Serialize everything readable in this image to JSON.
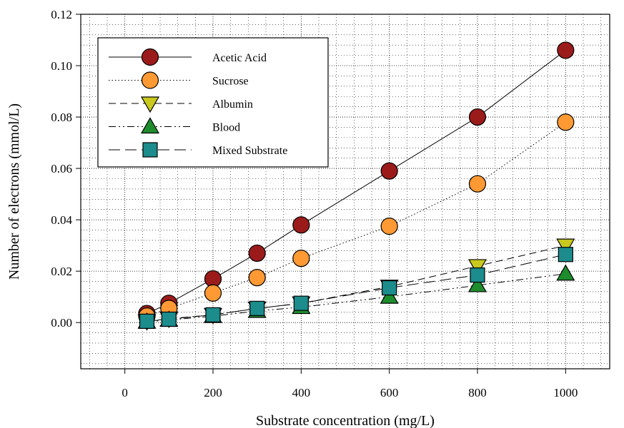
{
  "chart_data": {
    "type": "scatter",
    "title": "",
    "xlabel": "Substrate concentration (mg/L)",
    "ylabel": "Number of electrons (mmol/L)",
    "xlim": [
      -100,
      1100
    ],
    "ylim": [
      -0.018,
      0.12
    ],
    "x_ticks": [
      0,
      200,
      400,
      600,
      800,
      1000
    ],
    "x_tick_labels": [
      "0",
      "200",
      "400",
      "600",
      "800",
      "1000"
    ],
    "y_ticks": [
      0.0,
      0.02,
      0.04,
      0.06,
      0.08,
      0.1,
      0.12
    ],
    "y_tick_labels": [
      "0.00",
      "0.02",
      "0.04",
      "0.06",
      "0.08",
      "0.10",
      "0.12"
    ],
    "grid": true,
    "legend_position": "top-left",
    "series": [
      {
        "name": "Acetic Acid",
        "marker": "circle",
        "color": "#9B1B1B",
        "line": "solid",
        "x": [
          50,
          100,
          200,
          300,
          400,
          600,
          800,
          1000
        ],
        "y": [
          0.0035,
          0.0075,
          0.017,
          0.027,
          0.038,
          0.059,
          0.08,
          0.106
        ]
      },
      {
        "name": "Sucrose",
        "marker": "circle",
        "color": "#FF9933",
        "line": "dotted",
        "x": [
          50,
          100,
          200,
          300,
          400,
          600,
          800,
          1000
        ],
        "y": [
          0.0025,
          0.0055,
          0.0115,
          0.0175,
          0.025,
          0.0375,
          0.054,
          0.078
        ]
      },
      {
        "name": "Albumin",
        "marker": "triangle-down",
        "color": "#C8C81E",
        "line": "dashed",
        "x": [
          50,
          100,
          200,
          300,
          400,
          600,
          800,
          1000
        ],
        "y": [
          0.0005,
          0.0015,
          0.003,
          0.0055,
          0.0075,
          0.014,
          0.022,
          0.03
        ]
      },
      {
        "name": "Blood",
        "marker": "triangle-up",
        "color": "#1E8C2D",
        "line": "dash-dot-dot",
        "x": [
          50,
          100,
          200,
          300,
          400,
          600,
          800,
          1000
        ],
        "y": [
          0.0003,
          0.001,
          0.0025,
          0.0045,
          0.006,
          0.01,
          0.0145,
          0.019
        ]
      },
      {
        "name": "Mixed Substrate",
        "marker": "square",
        "color": "#1C8C8C",
        "line": "long-dash",
        "x": [
          50,
          100,
          200,
          300,
          400,
          600,
          800,
          1000
        ],
        "y": [
          0.0005,
          0.0013,
          0.003,
          0.0055,
          0.0075,
          0.0135,
          0.0185,
          0.0265
        ]
      }
    ]
  }
}
